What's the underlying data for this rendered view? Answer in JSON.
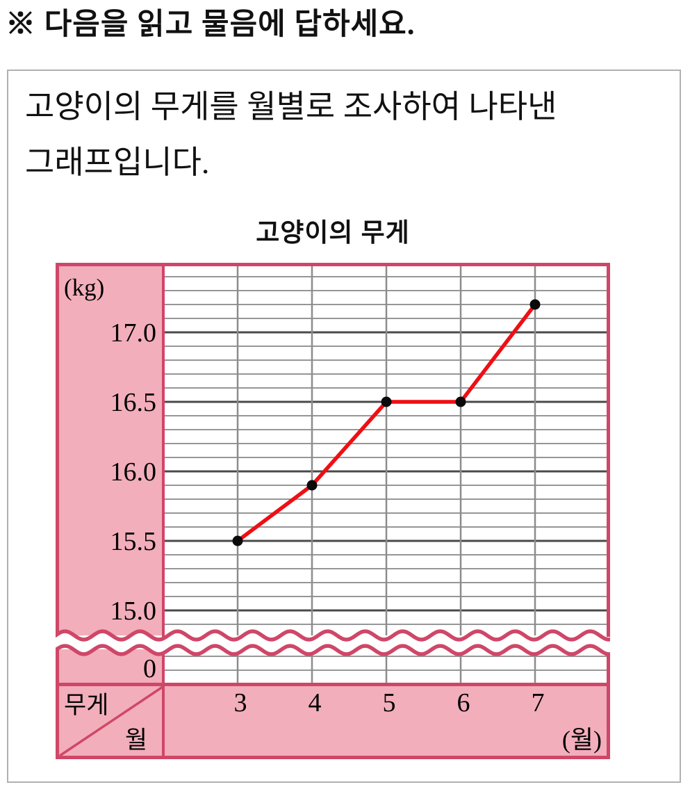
{
  "instruction": "※ 다음을 읽고 물음에 답하세요.",
  "description": {
    "line1": "고양이의 무게를 월별로 조사하여 나타낸",
    "line2": "그래프입니다."
  },
  "chart_data": {
    "type": "line",
    "title": "고양이의 무게",
    "x_categories": [
      "3",
      "4",
      "5",
      "6",
      "7"
    ],
    "values": [
      15.5,
      15.9,
      16.5,
      16.5,
      17.2
    ],
    "x_unit_label": "(월)",
    "y_unit_label": "(kg)",
    "y_major_ticks": [
      "17.0",
      "16.5",
      "16.0",
      "15.5",
      "15.0"
    ],
    "y_minor_step": 0.1,
    "ylim_displayed": [
      15.0,
      17.5
    ],
    "axis_break": {
      "present": true,
      "zero_label": "0"
    },
    "table_header": {
      "row_label": "무게",
      "col_label": "월"
    },
    "grid": true,
    "legend": "none",
    "colors": {
      "line": "#ee0f14",
      "marker": "#0a0a0a",
      "frame": "#cf4768",
      "band_fill": "#f3aebb",
      "grid_minor": "#969696",
      "grid_major": "#4a4a4a",
      "grid_vertical": "#8c8c8c"
    }
  }
}
